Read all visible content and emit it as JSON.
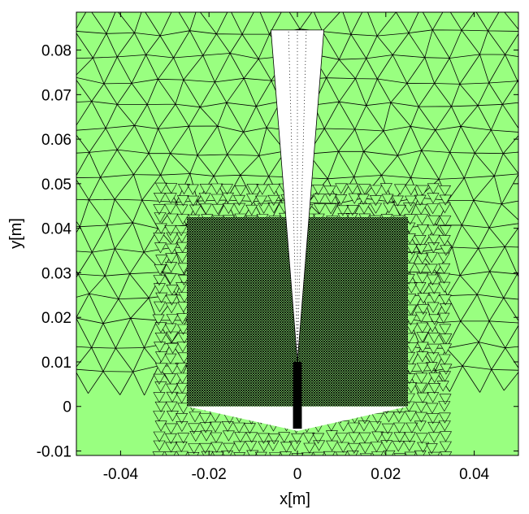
{
  "chart_data": {
    "type": "mesh",
    "xlabel": "x[m]",
    "ylabel": "y[m]",
    "xlim": [
      -0.05,
      0.05
    ],
    "ylim": [
      -0.011,
      0.0885
    ],
    "xticks": [
      {
        "value": -0.04,
        "label": "-0.04"
      },
      {
        "value": -0.02,
        "label": "-0.02"
      },
      {
        "value": 0,
        "label": "0"
      },
      {
        "value": 0.02,
        "label": "0.02"
      },
      {
        "value": 0.04,
        "label": "0.04"
      }
    ],
    "yticks": [
      {
        "value": -0.01,
        "label": "-0.01"
      },
      {
        "value": 0,
        "label": "0"
      },
      {
        "value": 0.01,
        "label": "0.01"
      },
      {
        "value": 0.02,
        "label": "0.02"
      },
      {
        "value": 0.03,
        "label": "0.03"
      },
      {
        "value": 0.04,
        "label": "0.04"
      },
      {
        "value": 0.05,
        "label": "0.05"
      },
      {
        "value": 0.06,
        "label": "0.06"
      },
      {
        "value": 0.07,
        "label": "0.07"
      },
      {
        "value": 0.08,
        "label": "0.08"
      }
    ],
    "grid": false,
    "colors": {
      "domain_fill": "#99ff80",
      "mesh_edges": "#000000",
      "cutout": "#ffffff",
      "frame": "#000000"
    },
    "refined_region": {
      "x": [
        -0.025,
        0.025
      ],
      "y": [
        0.0,
        0.0425
      ]
    },
    "blade_cutout": [
      [
        -0.006,
        0.0845
      ],
      [
        0.006,
        0.0845
      ],
      [
        0.0,
        0.01
      ]
    ],
    "base_cutout": [
      [
        -0.025,
        0.0
      ],
      [
        0.025,
        0.0
      ],
      [
        0.0,
        -0.0055
      ]
    ],
    "stem": {
      "x": [
        -0.001,
        0.001
      ],
      "y": [
        -0.005,
        0.01
      ]
    }
  }
}
